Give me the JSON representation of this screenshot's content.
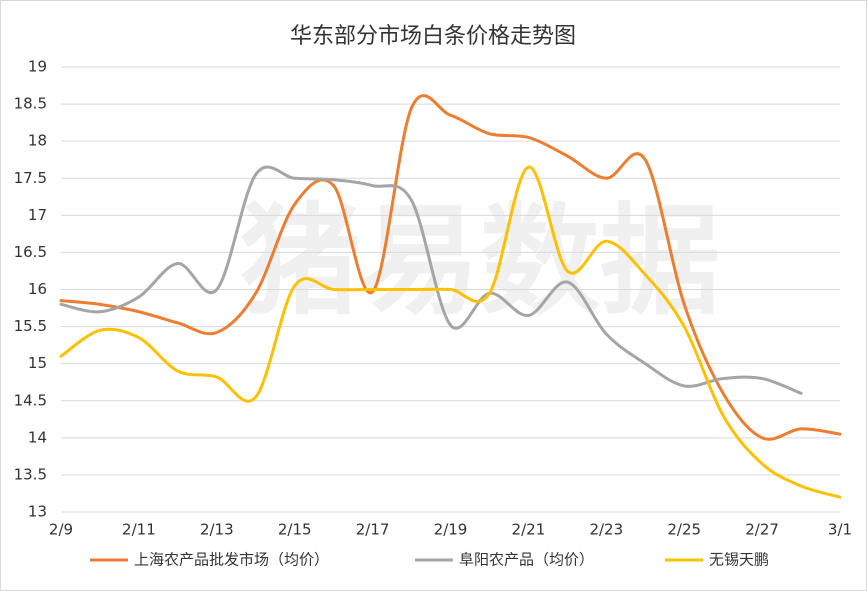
{
  "chart_data": {
    "type": "line",
    "title": "华东部分市场白条价格走势图",
    "watermark": "猪易数据",
    "categories": [
      "2/9",
      null,
      "2/11",
      null,
      "2/13",
      null,
      "2/15",
      null,
      "2/17",
      null,
      "2/19",
      null,
      "2/21",
      null,
      "2/23",
      null,
      "2/25",
      null,
      "2/27",
      null,
      "3/1"
    ],
    "series": [
      {
        "name": "上海农产品批发市场（均价）",
        "color": "#ED7D31",
        "values": [
          15.85,
          15.8,
          15.7,
          15.55,
          15.42,
          15.95,
          17.15,
          17.4,
          15.97,
          18.45,
          18.35,
          18.1,
          18.05,
          17.8,
          17.5,
          17.75,
          15.8,
          14.6,
          14.0,
          14.12,
          14.05
        ]
      },
      {
        "name": "阜阳农产品（均价）",
        "color": "#A5A5A5",
        "values": [
          15.8,
          15.7,
          15.9,
          16.35,
          16.0,
          17.55,
          17.5,
          17.48,
          17.4,
          17.2,
          15.52,
          15.95,
          15.65,
          16.1,
          15.4,
          15.0,
          14.7,
          14.8,
          14.8,
          14.6,
          null
        ]
      },
      {
        "name": "无锡天鹏",
        "color": "#FFC000",
        "values": [
          15.1,
          15.45,
          15.35,
          14.9,
          14.82,
          14.55,
          16.05,
          16.0,
          16.0,
          16.0,
          16.0,
          15.95,
          17.65,
          16.25,
          16.65,
          16.2,
          15.5,
          14.3,
          13.65,
          13.35,
          13.2
        ]
      }
    ],
    "ylim": [
      13,
      19
    ],
    "yticks": [
      13,
      13.5,
      14,
      14.5,
      15,
      15.5,
      16,
      16.5,
      17,
      17.5,
      18,
      18.5,
      19
    ],
    "grid": true
  }
}
